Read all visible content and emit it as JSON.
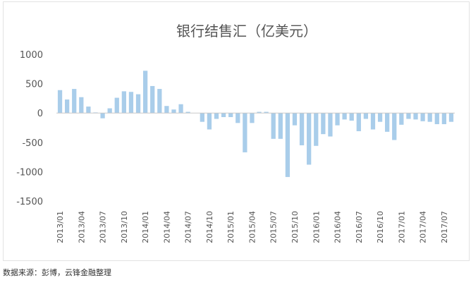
{
  "source_note": "数据来源：彭博，云锋金融整理",
  "chart_data": {
    "type": "bar",
    "title": "银行结售汇（亿美元）",
    "xlabel": "",
    "ylabel": "",
    "ylim": [
      -1500,
      1000
    ],
    "yticks": [
      1000,
      500,
      0,
      -500,
      -1000,
      -1500
    ],
    "ytick_labels": [
      "1000",
      "500",
      "0",
      "-500",
      "-1000",
      "-1500"
    ],
    "bar_color": "#a9cdea",
    "grid": false,
    "legend": "none",
    "tick_labels": [
      "2013/01",
      "2013/04",
      "2013/07",
      "2013/10",
      "2014/01",
      "2014/04",
      "2014/07",
      "2014/10",
      "2015/01",
      "2015/04",
      "2015/07",
      "2015/10",
      "2016/01",
      "2016/04",
      "2016/07",
      "2016/10",
      "2017/01",
      "2017/04",
      "2017/07"
    ],
    "categories": [
      "2013/01",
      "2013/02",
      "2013/03",
      "2013/04",
      "2013/05",
      "2013/06",
      "2013/07",
      "2013/08",
      "2013/09",
      "2013/10",
      "2013/11",
      "2013/12",
      "2014/01",
      "2014/02",
      "2014/03",
      "2014/04",
      "2014/05",
      "2014/06",
      "2014/07",
      "2014/08",
      "2014/09",
      "2014/10",
      "2014/11",
      "2014/12",
      "2015/01",
      "2015/02",
      "2015/03",
      "2015/04",
      "2015/05",
      "2015/06",
      "2015/07",
      "2015/08",
      "2015/09",
      "2015/10",
      "2015/11",
      "2015/12",
      "2016/01",
      "2016/02",
      "2016/03",
      "2016/04",
      "2016/05",
      "2016/06",
      "2016/07",
      "2016/08",
      "2016/09",
      "2016/10",
      "2016/11",
      "2016/12",
      "2017/01",
      "2017/02",
      "2017/03",
      "2017/04",
      "2017/05",
      "2017/06",
      "2017/07",
      "2017/08"
    ],
    "values": [
      390,
      230,
      410,
      270,
      110,
      10,
      -90,
      80,
      260,
      370,
      360,
      320,
      720,
      460,
      410,
      120,
      60,
      150,
      20,
      0,
      -150,
      -280,
      -100,
      -70,
      -70,
      -170,
      -670,
      -170,
      20,
      20,
      -440,
      -440,
      -1090,
      -210,
      -550,
      -880,
      -560,
      -360,
      -400,
      -210,
      -110,
      -130,
      -310,
      -100,
      -280,
      -150,
      -320,
      -460,
      -200,
      -100,
      -110,
      -140,
      -150,
      -190,
      -190,
      -150
    ]
  }
}
